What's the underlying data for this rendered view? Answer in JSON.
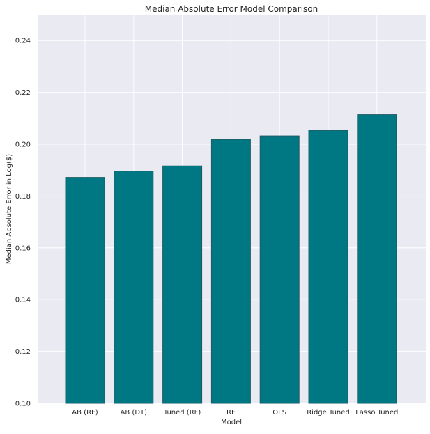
{
  "chart_data": {
    "type": "bar",
    "title": "Median Absolute Error Model Comparison",
    "xlabel": "Model",
    "ylabel": "Median Absolute Error in Log($)",
    "categories": [
      "AB (RF)",
      "AB (DT)",
      "Tuned (RF)",
      "RF",
      "OLS",
      "Ridge Tuned",
      "Lasso Tuned"
    ],
    "values": [
      0.1872,
      0.1896,
      0.1916,
      0.2018,
      0.2032,
      0.2053,
      0.2114
    ],
    "ylim": [
      0.1,
      0.25
    ],
    "yticks": [
      "0.10",
      "0.12",
      "0.14",
      "0.16",
      "0.18",
      "0.20",
      "0.22",
      "0.24"
    ],
    "grid": true,
    "colors": {
      "bar_fill": "#007883",
      "bar_edge": "#1e5c63",
      "plot_background": "#eaeaf2",
      "grid": "#ffffff",
      "text": "#262626"
    }
  }
}
